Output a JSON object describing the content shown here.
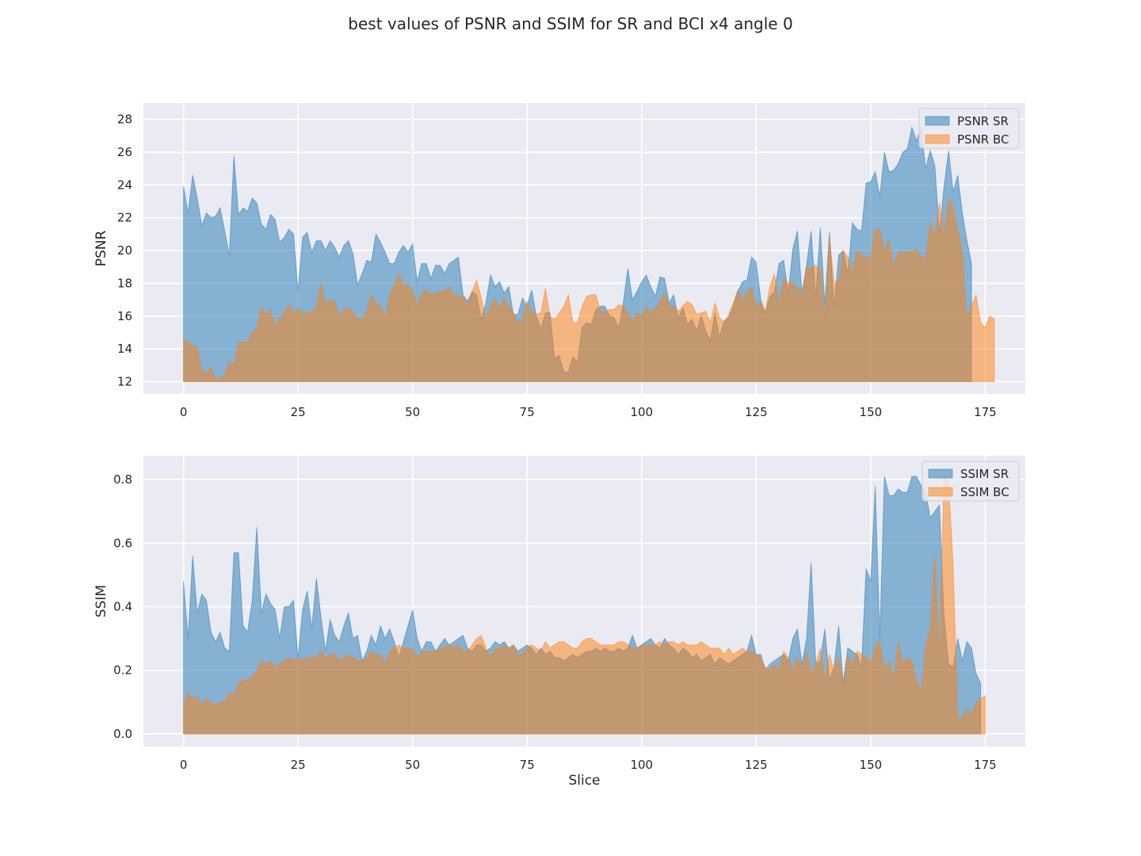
{
  "title": "best values of PSNR and SSIM for SR and BCI x4 angle 0",
  "colors": {
    "series_sr": "#4c8fc6",
    "series_bc": "#f5a35e",
    "panel_bg": "#eaeaf2",
    "grid": "#ffffff",
    "text": "#262626"
  },
  "chart_data": [
    {
      "type": "area",
      "xlabel": "",
      "ylabel": "PSNR",
      "xlim": [
        -8.75,
        183.75
      ],
      "ylim": [
        11.25,
        29
      ],
      "xticks": [
        0,
        25,
        50,
        75,
        100,
        125,
        150,
        175
      ],
      "yticks": [
        12,
        14,
        16,
        18,
        20,
        22,
        24,
        26,
        28
      ],
      "ytick_labels": [
        "12",
        "14",
        "16",
        "18",
        "20",
        "22",
        "24",
        "26",
        "28"
      ],
      "baseline": 12,
      "grid": true,
      "legend": "upper right",
      "series": [
        {
          "name": "PSNR SR",
          "color": "#1f77b4",
          "values": [
            23.9,
            22.3,
            24.6,
            23.2,
            21.5,
            22.3,
            22.0,
            22.1,
            22.6,
            21.2,
            19.7,
            25.8,
            22.2,
            22.6,
            22.4,
            23.2,
            22.9,
            21.6,
            21.3,
            22.2,
            21.9,
            20.5,
            20.8,
            21.3,
            21.0,
            17.5,
            20.8,
            21.1,
            19.9,
            20.6,
            20.6,
            20.0,
            20.6,
            20.2,
            19.6,
            20.3,
            20.6,
            19.8,
            17.9,
            18.6,
            19.4,
            19.3,
            21.0,
            20.5,
            19.9,
            19.2,
            19.2,
            19.9,
            20.3,
            19.9,
            20.4,
            18.1,
            19.2,
            19.2,
            18.3,
            19.1,
            19.1,
            18.6,
            19.2,
            19.4,
            19.6,
            17.3,
            16.9,
            17.5,
            17.3,
            15.8,
            16.8,
            18.5,
            17.8,
            18.1,
            17.4,
            17.8,
            16.1,
            16.1,
            17.1,
            16.6,
            17.6,
            16.0,
            15.2,
            16.2,
            16.2,
            13.4,
            13.6,
            12.6,
            12.6,
            13.5,
            13.2,
            15.3,
            15.6,
            15.5,
            16.4,
            16.6,
            16.6,
            16.0,
            15.9,
            15.3,
            16.8,
            18.9,
            17.0,
            17.5,
            18.1,
            18.5,
            17.8,
            17.2,
            18.4,
            18.3,
            16.8,
            17.3,
            15.9,
            16.5,
            15.5,
            15.8,
            15.1,
            16.0,
            15.1,
            14.5,
            16.2,
            14.7,
            15.7,
            15.9,
            16.6,
            17.5,
            18.1,
            18.2,
            19.6,
            19.3,
            17.0,
            16.2,
            17.2,
            17.5,
            19.2,
            19.4,
            17.4,
            20.1,
            21.2,
            17.4,
            19.1,
            21.2,
            17.1,
            21.4,
            16.7,
            21.1,
            16.5,
            19.7,
            20.0,
            18.6,
            21.7,
            21.3,
            21.2,
            24.1,
            24.2,
            24.8,
            23.3,
            26.0,
            24.8,
            24.9,
            25.3,
            26.0,
            26.2,
            27.5,
            26.7,
            27.5,
            25.0,
            26.1,
            25.2,
            21.0,
            23.9,
            26.1,
            23.6,
            24.6,
            22.3,
            20.6,
            19.2
          ]
        },
        {
          "name": "PSNR BC",
          "color": "#ff7f0e",
          "values": [
            14.6,
            14.4,
            14.2,
            14.1,
            12.7,
            12.5,
            12.9,
            12.1,
            12.2,
            12.5,
            13.2,
            13.0,
            14.4,
            14.4,
            14.4,
            15.0,
            15.3,
            16.5,
            16.1,
            16.4,
            15.4,
            15.9,
            16.2,
            16.7,
            16.2,
            16.5,
            16.1,
            16.2,
            16.3,
            16.5,
            18.0,
            16.7,
            17.0,
            16.9,
            16.0,
            16.4,
            16.5,
            16.2,
            15.9,
            15.8,
            16.3,
            17.3,
            16.8,
            16.6,
            15.9,
            17.3,
            17.9,
            18.6,
            17.9,
            17.9,
            17.6,
            16.6,
            17.4,
            17.6,
            17.3,
            17.4,
            17.5,
            17.5,
            17.8,
            17.3,
            17.2,
            17.2,
            16.6,
            17.5,
            18.2,
            17.1,
            15.8,
            16.6,
            17.1,
            16.4,
            17.1,
            16.6,
            16.2,
            15.6,
            15.8,
            16.9,
            16.3,
            16.1,
            16.2,
            17.7,
            16.0,
            15.8,
            16.2,
            16.6,
            17.3,
            15.6,
            15.6,
            16.6,
            17.2,
            17.3,
            17.3,
            16.3,
            16.2,
            16.4,
            16.4,
            16.7,
            16.6,
            16.2,
            15.7,
            16.2,
            16.0,
            16.6,
            16.2,
            16.5,
            16.9,
            17.4,
            16.6,
            16.6,
            16.3,
            16.6,
            16.9,
            16.7,
            16.1,
            16.2,
            16.3,
            15.6,
            16.8,
            15.9,
            15.6,
            16.1,
            16.8,
            17.6,
            16.9,
            17.5,
            17.7,
            16.7,
            16.8,
            16.3,
            17.8,
            18.6,
            16.6,
            18.3,
            18.0,
            18.0,
            17.7,
            17.3,
            19.0,
            18.9,
            19.1,
            18.8,
            15.7,
            20.8,
            18.1,
            18.0,
            20.0,
            19.6,
            18.6,
            20.0,
            19.7,
            19.6,
            19.6,
            21.3,
            21.3,
            19.9,
            20.7,
            19.0,
            19.9,
            19.9,
            19.9,
            19.9,
            20.1,
            19.6,
            19.5,
            21.7,
            20.8,
            22.9,
            20.8,
            23.2,
            22.6,
            21.3,
            19.9,
            15.8,
            16.6,
            17.3,
            15.6,
            15.3,
            16.0,
            15.8
          ]
        }
      ]
    },
    {
      "type": "area",
      "xlabel": "Slice",
      "ylabel": "SSIM",
      "xlim": [
        -8.75,
        183.75
      ],
      "ylim": [
        -0.04,
        0.875
      ],
      "xticks": [
        0,
        25,
        50,
        75,
        100,
        125,
        150,
        175
      ],
      "yticks": [
        0.0,
        0.2,
        0.4,
        0.6,
        0.8
      ],
      "ytick_labels": [
        "0.0",
        "0.2",
        "0.4",
        "0.6",
        "0.8"
      ],
      "baseline": 0,
      "grid": true,
      "legend": "upper right",
      "series": [
        {
          "name": "SSIM SR",
          "color": "#1f77b4",
          "values": [
            0.48,
            0.3,
            0.56,
            0.38,
            0.44,
            0.42,
            0.32,
            0.29,
            0.32,
            0.27,
            0.26,
            0.57,
            0.57,
            0.34,
            0.32,
            0.42,
            0.65,
            0.38,
            0.44,
            0.41,
            0.39,
            0.3,
            0.4,
            0.4,
            0.42,
            0.24,
            0.39,
            0.45,
            0.33,
            0.49,
            0.37,
            0.26,
            0.36,
            0.31,
            0.29,
            0.34,
            0.38,
            0.3,
            0.31,
            0.23,
            0.26,
            0.31,
            0.28,
            0.34,
            0.3,
            0.33,
            0.29,
            0.24,
            0.29,
            0.34,
            0.39,
            0.3,
            0.26,
            0.29,
            0.29,
            0.26,
            0.28,
            0.3,
            0.28,
            0.29,
            0.3,
            0.31,
            0.27,
            0.26,
            0.28,
            0.28,
            0.26,
            0.27,
            0.29,
            0.28,
            0.29,
            0.27,
            0.28,
            0.26,
            0.27,
            0.28,
            0.27,
            0.25,
            0.27,
            0.25,
            0.26,
            0.24,
            0.24,
            0.23,
            0.24,
            0.25,
            0.24,
            0.25,
            0.26,
            0.26,
            0.27,
            0.26,
            0.27,
            0.26,
            0.26,
            0.27,
            0.26,
            0.27,
            0.31,
            0.27,
            0.28,
            0.29,
            0.3,
            0.28,
            0.27,
            0.3,
            0.28,
            0.27,
            0.25,
            0.27,
            0.26,
            0.24,
            0.25,
            0.23,
            0.24,
            0.25,
            0.22,
            0.24,
            0.23,
            0.22,
            0.23,
            0.24,
            0.25,
            0.26,
            0.31,
            0.25,
            0.25,
            0.2,
            0.22,
            0.23,
            0.24,
            0.25,
            0.23,
            0.3,
            0.33,
            0.22,
            0.3,
            0.54,
            0.22,
            0.23,
            0.33,
            0.17,
            0.21,
            0.34,
            0.16,
            0.27,
            0.26,
            0.25,
            0.21,
            0.52,
            0.48,
            0.78,
            0.3,
            0.81,
            0.75,
            0.75,
            0.77,
            0.76,
            0.76,
            0.81,
            0.81,
            0.78,
            0.76,
            0.68,
            0.7,
            0.72,
            0.37,
            0.22,
            0.21,
            0.3,
            0.23,
            0.29,
            0.27,
            0.19,
            0.16
          ]
        },
        {
          "name": "SSIM BC",
          "color": "#ff7f0e",
          "values": [
            0.09,
            0.13,
            0.11,
            0.12,
            0.09,
            0.11,
            0.1,
            0.09,
            0.1,
            0.1,
            0.13,
            0.12,
            0.16,
            0.17,
            0.17,
            0.18,
            0.2,
            0.23,
            0.22,
            0.23,
            0.21,
            0.22,
            0.23,
            0.24,
            0.23,
            0.24,
            0.23,
            0.24,
            0.24,
            0.24,
            0.26,
            0.24,
            0.25,
            0.25,
            0.23,
            0.24,
            0.25,
            0.24,
            0.23,
            0.23,
            0.24,
            0.26,
            0.25,
            0.25,
            0.22,
            0.26,
            0.27,
            0.28,
            0.27,
            0.27,
            0.27,
            0.24,
            0.26,
            0.26,
            0.26,
            0.26,
            0.27,
            0.27,
            0.28,
            0.27,
            0.28,
            0.26,
            0.26,
            0.28,
            0.3,
            0.31,
            0.27,
            0.24,
            0.27,
            0.27,
            0.28,
            0.27,
            0.28,
            0.25,
            0.25,
            0.27,
            0.28,
            0.27,
            0.26,
            0.29,
            0.27,
            0.28,
            0.29,
            0.29,
            0.28,
            0.27,
            0.27,
            0.29,
            0.3,
            0.3,
            0.29,
            0.28,
            0.28,
            0.28,
            0.28,
            0.29,
            0.29,
            0.28,
            0.27,
            0.27,
            0.28,
            0.28,
            0.28,
            0.28,
            0.29,
            0.28,
            0.29,
            0.29,
            0.28,
            0.29,
            0.28,
            0.28,
            0.28,
            0.29,
            0.28,
            0.27,
            0.27,
            0.27,
            0.25,
            0.27,
            0.25,
            0.26,
            0.27,
            0.26,
            0.26,
            0.25,
            0.24,
            0.21,
            0.2,
            0.22,
            0.2,
            0.26,
            0.24,
            0.2,
            0.24,
            0.21,
            0.26,
            0.19,
            0.22,
            0.27,
            0.17,
            0.25,
            0.2,
            0.24,
            0.15,
            0.25,
            0.21,
            0.26,
            0.25,
            0.24,
            0.22,
            0.28,
            0.29,
            0.2,
            0.23,
            0.17,
            0.29,
            0.22,
            0.24,
            0.23,
            0.17,
            0.13,
            0.28,
            0.33,
            0.56,
            0.23,
            0.82,
            0.79,
            0.53,
            0.05,
            0.05,
            0.08,
            0.06,
            0.1,
            0.11,
            0.12
          ]
        }
      ]
    }
  ]
}
